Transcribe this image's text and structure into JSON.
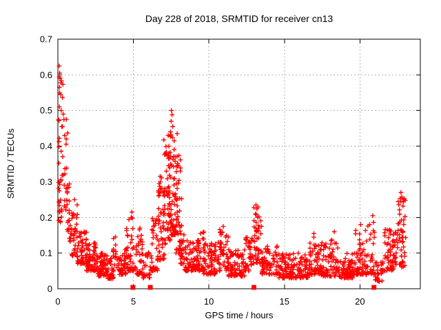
{
  "chart_data": {
    "type": "scatter",
    "title": "Day 228 of 2018, SRMTID for receiver cn13",
    "xlabel": "GPS time / hours",
    "ylabel": "SRMTID / TECUs",
    "xlim": [
      0,
      24
    ],
    "ylim": [
      0,
      0.7
    ],
    "xticks": [
      0,
      5,
      10,
      15,
      20
    ],
    "yticks": [
      0,
      0.1,
      0.2,
      0.3,
      0.4,
      0.5,
      0.6,
      0.7
    ],
    "grid": true,
    "legend_position": "none",
    "marker": "plus",
    "colors": {
      "marker": "#ff0000",
      "grid": "#b0b0b0",
      "axis": "#000000",
      "background": "#ffffff",
      "text": "#000000"
    },
    "seed": 20180813,
    "point_bins": [
      [
        0.02,
        0.35,
        20,
        0.2,
        0.6,
        1.0
      ],
      [
        0.02,
        0.3,
        15,
        0.18,
        0.3,
        1.2
      ],
      [
        0.3,
        0.65,
        18,
        0.22,
        0.48,
        1.2
      ],
      [
        0.6,
        0.95,
        24,
        0.13,
        0.3,
        1.3
      ],
      [
        0.9,
        1.3,
        36,
        0.09,
        0.25,
        1.8
      ],
      [
        1.3,
        1.9,
        55,
        0.07,
        0.16,
        1.7
      ],
      [
        1.9,
        2.6,
        65,
        0.05,
        0.13,
        1.8
      ],
      [
        2.6,
        3.3,
        65,
        0.035,
        0.1,
        1.8
      ],
      [
        3.3,
        3.7,
        40,
        0.028,
        0.09,
        1.8
      ],
      [
        3.6,
        3.85,
        12,
        0.06,
        0.15,
        1.5
      ],
      [
        3.85,
        4.5,
        45,
        0.04,
        0.11,
        1.8
      ],
      [
        4.5,
        5.0,
        38,
        0.05,
        0.21,
        1.9
      ],
      [
        5.0,
        5.6,
        40,
        0.04,
        0.17,
        2.0
      ],
      [
        5.6,
        6.1,
        25,
        0.03,
        0.11,
        1.8
      ],
      [
        6.1,
        6.6,
        35,
        0.05,
        0.2,
        1.8
      ],
      [
        6.6,
        7.1,
        50,
        0.08,
        0.32,
        1.6
      ],
      [
        7.0,
        7.45,
        55,
        0.12,
        0.42,
        1.5
      ],
      [
        7.4,
        7.9,
        60,
        0.15,
        0.46,
        1.6
      ],
      [
        7.8,
        8.2,
        40,
        0.1,
        0.38,
        1.8
      ],
      [
        8.1,
        8.45,
        25,
        0.07,
        0.18,
        1.8
      ],
      [
        8.4,
        9.4,
        80,
        0.05,
        0.14,
        1.8
      ],
      [
        9.3,
        9.7,
        25,
        0.05,
        0.16,
        1.8
      ],
      [
        9.6,
        10.6,
        70,
        0.04,
        0.13,
        1.8
      ],
      [
        10.6,
        11.3,
        50,
        0.05,
        0.17,
        1.9
      ],
      [
        11.3,
        12.4,
        75,
        0.035,
        0.11,
        1.8
      ],
      [
        12.4,
        12.9,
        35,
        0.05,
        0.15,
        1.7
      ],
      [
        12.9,
        13.5,
        45,
        0.07,
        0.23,
        1.5
      ],
      [
        13.5,
        14.6,
        70,
        0.04,
        0.12,
        1.8
      ],
      [
        14.6,
        16.6,
        130,
        0.03,
        0.1,
        1.8
      ],
      [
        16.6,
        17.4,
        55,
        0.04,
        0.15,
        1.9
      ],
      [
        17.4,
        18.6,
        80,
        0.035,
        0.14,
        2.0
      ],
      [
        18.6,
        19.6,
        70,
        0.03,
        0.1,
        1.8
      ],
      [
        19.6,
        20.4,
        55,
        0.04,
        0.17,
        1.9
      ],
      [
        20.4,
        21.0,
        40,
        0.04,
        0.2,
        1.9
      ],
      [
        21.0,
        21.5,
        25,
        0.02,
        0.08,
        1.5
      ],
      [
        21.5,
        22.3,
        55,
        0.05,
        0.17,
        1.8
      ],
      [
        22.3,
        23.05,
        60,
        0.06,
        0.26,
        1.5
      ]
    ],
    "outlier_points": [
      [
        0.08,
        0.625
      ],
      [
        0.12,
        0.605
      ],
      [
        0.14,
        0.59
      ],
      [
        0.1,
        0.565
      ],
      [
        0.18,
        0.545
      ],
      [
        0.22,
        0.5
      ],
      [
        0.35,
        0.49
      ],
      [
        0.4,
        0.475
      ],
      [
        0.3,
        0.455
      ],
      [
        0.45,
        0.43
      ],
      [
        0.55,
        0.42
      ],
      [
        7.52,
        0.5
      ],
      [
        7.56,
        0.488
      ],
      [
        7.5,
        0.47
      ],
      [
        7.6,
        0.455
      ],
      [
        7.45,
        0.44
      ],
      [
        7.3,
        0.43
      ],
      [
        7.7,
        0.415
      ],
      [
        7.35,
        0.4
      ],
      [
        13.12,
        0.235
      ],
      [
        13.18,
        0.224
      ],
      [
        13.08,
        0.21
      ],
      [
        22.72,
        0.27
      ],
      [
        22.78,
        0.257
      ],
      [
        22.7,
        0.245
      ],
      [
        22.85,
        0.232
      ],
      [
        20.85,
        0.205
      ],
      [
        4.9,
        0.215
      ],
      [
        4.86,
        0.2
      ],
      [
        10.95,
        0.175
      ],
      [
        6.55,
        0.195
      ],
      [
        9.45,
        0.155
      ],
      [
        16.95,
        0.155
      ],
      [
        18.3,
        0.16
      ],
      [
        20.05,
        0.18
      ]
    ],
    "axis_gap_markers": [
      4.97,
      6.12,
      12.98,
      20.93
    ]
  }
}
